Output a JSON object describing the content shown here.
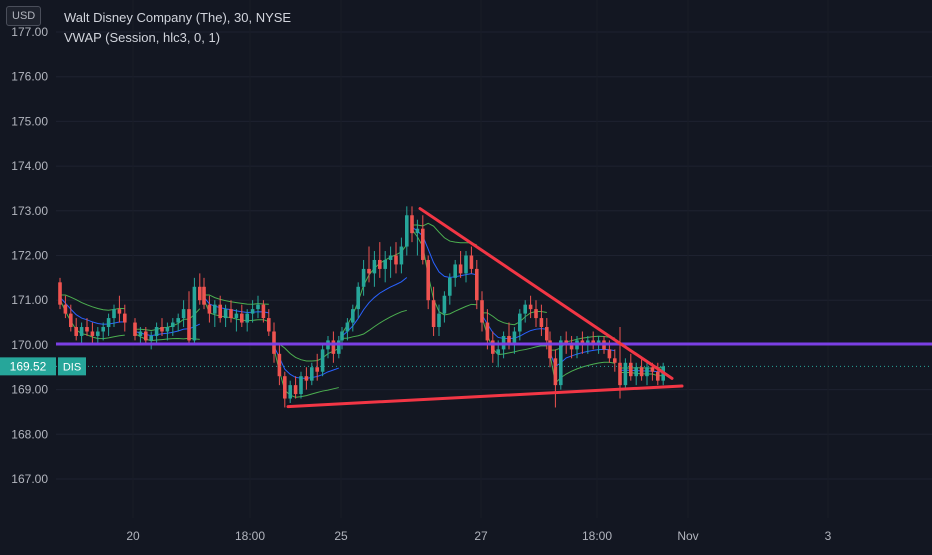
{
  "header": {
    "currency": "USD",
    "title": "Walt Disney Company (The), 30, NYSE",
    "indicator": "VWAP (Session, hlc3, 0, 1)"
  },
  "price_label": {
    "value": "169.52",
    "ticker": "DIS"
  },
  "colors": {
    "background": "#131722",
    "up": "#26a69a",
    "down": "#ef5350",
    "vwap": "#2962ff",
    "band": "#4caf50",
    "support_line": "#7b3fe4",
    "trendline": "#f23645",
    "axis_text": "#b2b5be"
  },
  "chart_data": {
    "type": "line",
    "y_axis": {
      "ticks": [
        "177.00",
        "176.00",
        "175.00",
        "174.00",
        "173.00",
        "172.00",
        "171.00",
        "170.00",
        "169.00",
        "168.00",
        "167.00"
      ],
      "range": [
        166.3,
        177.3
      ]
    },
    "x_axis": {
      "ticks": [
        "20",
        "18:00",
        "25",
        "27",
        "18:00",
        "Nov",
        "3"
      ],
      "range": [
        "Oct 19",
        "Nov 4"
      ]
    },
    "horizontal_line": {
      "value": 170.02
    },
    "last_price": 169.52,
    "trendlines": [
      {
        "from": [
          "Oct 26",
          173.05
        ],
        "to": [
          "Oct 31",
          169.25
        ]
      },
      {
        "from": [
          "Oct 24",
          168.62
        ],
        "to": [
          "Oct 31",
          169.08
        ]
      }
    ],
    "sessions": [
      {
        "date": "Oct 19",
        "ohlc": [
          [
            171.4,
            171.5,
            170.8,
            170.9
          ],
          [
            170.9,
            171.1,
            170.6,
            170.7
          ],
          [
            170.7,
            170.9,
            170.3,
            170.4
          ],
          [
            170.4,
            170.6,
            170.1,
            170.2
          ],
          [
            170.2,
            170.5,
            170.0,
            170.4
          ],
          [
            170.4,
            170.6,
            170.2,
            170.3
          ],
          [
            170.3,
            170.5,
            170.0,
            170.2
          ],
          [
            170.2,
            170.4,
            170.0,
            170.3
          ],
          [
            170.3,
            170.5,
            170.1,
            170.4
          ],
          [
            170.4,
            170.7,
            170.2,
            170.6
          ],
          [
            170.6,
            170.9,
            170.4,
            170.8
          ],
          [
            170.8,
            171.1,
            170.5,
            170.7
          ],
          [
            170.7,
            170.9,
            170.3,
            170.5
          ]
        ]
      },
      {
        "date": "Oct 20",
        "ohlc": [
          [
            170.5,
            170.6,
            170.1,
            170.2
          ],
          [
            170.2,
            170.4,
            170.0,
            170.3
          ],
          [
            170.3,
            170.4,
            170.0,
            170.1
          ],
          [
            170.1,
            170.3,
            169.9,
            170.2
          ],
          [
            170.2,
            170.5,
            170.0,
            170.4
          ],
          [
            170.4,
            170.6,
            170.2,
            170.3
          ],
          [
            170.3,
            170.5,
            170.1,
            170.4
          ],
          [
            170.4,
            170.6,
            170.2,
            170.5
          ],
          [
            170.5,
            170.7,
            170.3,
            170.6
          ],
          [
            170.6,
            171.0,
            170.4,
            170.8
          ],
          [
            170.8,
            171.2,
            170.0,
            170.1
          ],
          [
            170.1,
            171.5,
            170.0,
            171.3
          ],
          [
            171.3,
            171.6,
            170.9,
            171.0
          ]
        ]
      },
      {
        "date": "Oct 23",
        "ohlc": [
          [
            171.3,
            171.5,
            170.8,
            170.9
          ],
          [
            170.9,
            171.1,
            170.5,
            170.7
          ],
          [
            170.7,
            171.0,
            170.4,
            170.9
          ],
          [
            170.9,
            171.1,
            170.5,
            170.6
          ],
          [
            170.6,
            170.9,
            170.4,
            170.8
          ],
          [
            170.8,
            171.0,
            170.5,
            170.6
          ],
          [
            170.6,
            170.8,
            170.3,
            170.7
          ],
          [
            170.7,
            170.9,
            170.4,
            170.5
          ],
          [
            170.5,
            170.8,
            170.3,
            170.7
          ],
          [
            170.7,
            171.0,
            170.5,
            170.8
          ],
          [
            170.8,
            171.1,
            170.6,
            170.9
          ],
          [
            170.9,
            171.0,
            170.5,
            170.6
          ],
          [
            170.6,
            170.8,
            170.2,
            170.3
          ]
        ]
      },
      {
        "date": "Oct 24",
        "ohlc": [
          [
            170.3,
            170.5,
            169.6,
            169.8
          ],
          [
            169.8,
            170.0,
            169.1,
            169.3
          ],
          [
            169.3,
            169.4,
            168.6,
            168.8
          ],
          [
            168.8,
            169.2,
            168.7,
            169.1
          ],
          [
            169.1,
            169.3,
            168.8,
            168.9
          ],
          [
            168.9,
            169.4,
            168.8,
            169.3
          ],
          [
            169.3,
            169.5,
            169.0,
            169.2
          ],
          [
            169.2,
            169.6,
            169.1,
            169.5
          ],
          [
            169.5,
            169.8,
            169.2,
            169.4
          ],
          [
            169.4,
            170.0,
            169.3,
            169.9
          ],
          [
            169.9,
            170.2,
            169.7,
            170.1
          ],
          [
            170.1,
            170.3,
            169.6,
            169.8
          ],
          [
            169.8,
            170.2,
            169.7,
            170.1
          ]
        ]
      },
      {
        "date": "Oct 25",
        "ohlc": [
          [
            170.1,
            170.4,
            169.9,
            170.3
          ],
          [
            170.3,
            170.6,
            170.1,
            170.5
          ],
          [
            170.5,
            170.9,
            170.3,
            170.8
          ],
          [
            170.8,
            171.4,
            170.6,
            171.3
          ],
          [
            171.3,
            171.9,
            171.1,
            171.7
          ],
          [
            171.7,
            172.2,
            171.4,
            171.6
          ],
          [
            171.6,
            172.1,
            171.3,
            171.9
          ],
          [
            171.9,
            172.3,
            171.5,
            171.7
          ],
          [
            171.7,
            172.1,
            171.4,
            171.9
          ],
          [
            171.9,
            172.2,
            171.5,
            172.0
          ],
          [
            172.0,
            172.3,
            171.6,
            171.8
          ],
          [
            171.8,
            172.4,
            171.6,
            172.2
          ],
          [
            172.2,
            173.1,
            172.0,
            172.9
          ]
        ]
      },
      {
        "date": "Oct 26",
        "ohlc": [
          [
            172.9,
            173.1,
            172.3,
            172.5
          ],
          [
            172.5,
            172.8,
            172.0,
            172.6
          ],
          [
            172.6,
            172.9,
            171.8,
            171.9
          ],
          [
            171.9,
            172.0,
            170.8,
            171.0
          ],
          [
            171.0,
            171.3,
            170.2,
            170.4
          ],
          [
            170.4,
            170.9,
            170.2,
            170.7
          ],
          [
            170.7,
            171.2,
            170.5,
            171.1
          ],
          [
            171.1,
            171.6,
            170.9,
            171.5
          ],
          [
            171.5,
            171.9,
            171.3,
            171.8
          ],
          [
            171.8,
            172.1,
            171.5,
            171.6
          ],
          [
            171.6,
            172.1,
            171.4,
            172.0
          ],
          [
            172.0,
            172.2,
            171.6,
            171.7
          ],
          [
            171.7,
            171.9,
            170.8,
            171.0
          ]
        ]
      },
      {
        "date": "Oct 27",
        "ohlc": [
          [
            171.0,
            171.2,
            170.3,
            170.5
          ],
          [
            170.5,
            170.8,
            169.9,
            170.1
          ],
          [
            170.1,
            170.3,
            169.6,
            169.8
          ],
          [
            169.8,
            170.1,
            169.5,
            169.9
          ],
          [
            169.9,
            170.3,
            169.7,
            170.2
          ],
          [
            170.2,
            170.5,
            169.9,
            170.0
          ],
          [
            170.0,
            170.4,
            169.8,
            170.3
          ],
          [
            170.3,
            170.8,
            170.1,
            170.7
          ],
          [
            170.7,
            171.0,
            170.5,
            170.9
          ],
          [
            170.9,
            171.1,
            170.6,
            170.8
          ],
          [
            170.8,
            171.0,
            170.4,
            170.6
          ],
          [
            170.6,
            170.9,
            170.2,
            170.4
          ],
          [
            170.4,
            170.6,
            169.9,
            170.1
          ]
        ]
      },
      {
        "date": "Oct 30",
        "ohlc": [
          [
            170.1,
            170.3,
            169.5,
            169.7
          ],
          [
            169.7,
            169.9,
            168.6,
            169.1
          ],
          [
            169.1,
            170.2,
            169.0,
            170.1
          ],
          [
            170.1,
            170.3,
            169.8,
            170.0
          ],
          [
            170.0,
            170.2,
            169.7,
            169.9
          ],
          [
            169.9,
            170.2,
            169.7,
            170.1
          ],
          [
            170.1,
            170.3,
            169.8,
            170.0
          ],
          [
            170.0,
            170.2,
            169.8,
            170.1
          ],
          [
            170.1,
            170.3,
            169.9,
            170.0
          ],
          [
            170.0,
            170.2,
            169.8,
            170.1
          ],
          [
            170.1,
            170.2,
            169.8,
            169.9
          ],
          [
            169.9,
            170.1,
            169.6,
            169.7
          ],
          [
            169.7,
            169.9,
            169.4,
            169.6
          ]
        ]
      },
      {
        "date": "Oct 31",
        "ohlc": [
          [
            169.6,
            170.4,
            168.8,
            169.1
          ],
          [
            169.1,
            169.7,
            169.0,
            169.6
          ],
          [
            169.6,
            169.8,
            169.2,
            169.3
          ],
          [
            169.3,
            169.6,
            169.1,
            169.5
          ],
          [
            169.5,
            169.7,
            169.2,
            169.3
          ],
          [
            169.3,
            169.6,
            169.1,
            169.5
          ],
          [
            169.5,
            169.6,
            169.2,
            169.4
          ],
          [
            169.4,
            169.6,
            169.1,
            169.2
          ],
          [
            169.2,
            169.6,
            169.1,
            169.52
          ]
        ]
      }
    ]
  }
}
